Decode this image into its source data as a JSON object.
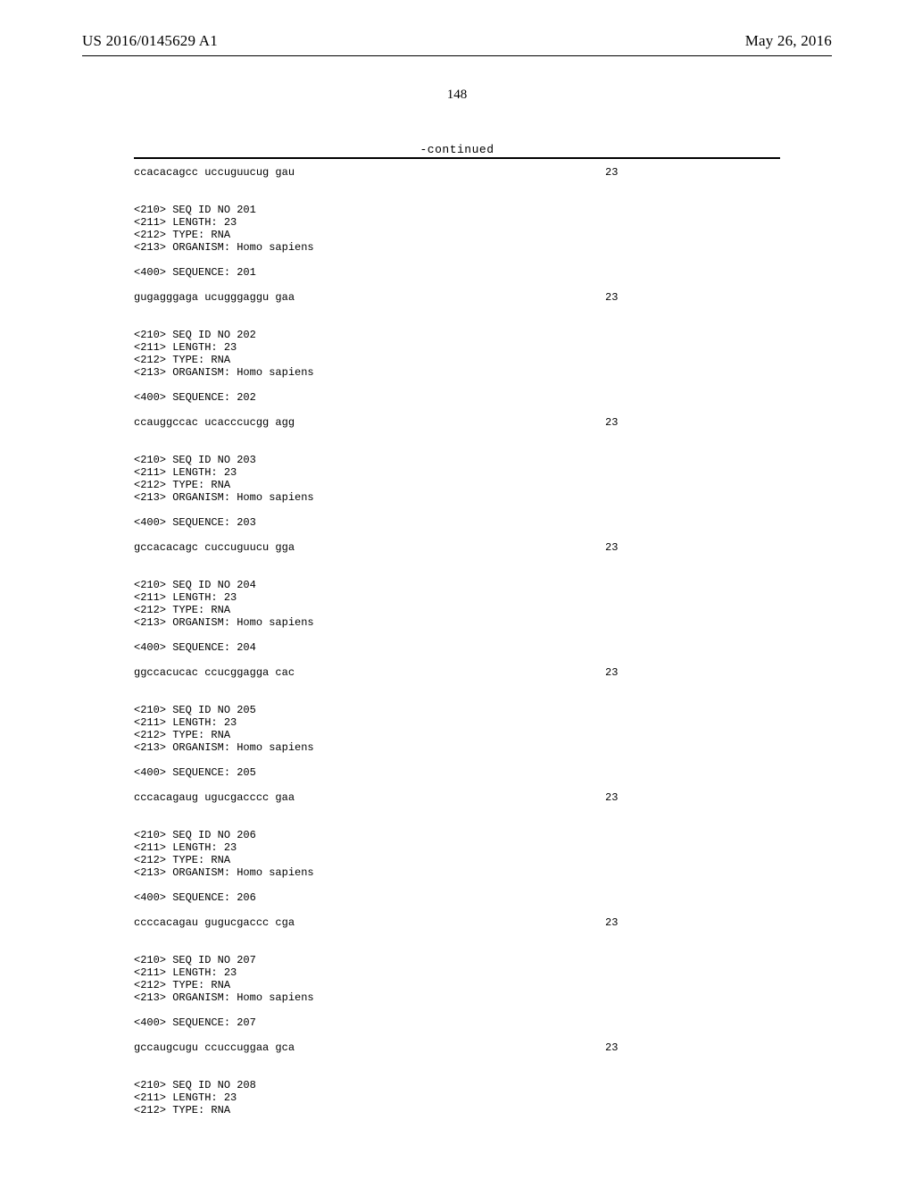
{
  "header": {
    "left": "US 2016/0145629 A1",
    "right": "May 26, 2016"
  },
  "page_number": "148",
  "continued_label": "-continued",
  "sequence_right_number": "23",
  "blocks": [
    {
      "type": "seqline",
      "text": "ccacacagcc uccuguucug gau",
      "num": "23"
    },
    {
      "type": "gap2"
    },
    {
      "type": "meta",
      "text": "<210> SEQ ID NO 201"
    },
    {
      "type": "meta",
      "text": "<211> LENGTH: 23"
    },
    {
      "type": "meta",
      "text": "<212> TYPE: RNA"
    },
    {
      "type": "meta",
      "text": "<213> ORGANISM: Homo sapiens"
    },
    {
      "type": "gap1"
    },
    {
      "type": "meta",
      "text": "<400> SEQUENCE: 201"
    },
    {
      "type": "gap1"
    },
    {
      "type": "seqline",
      "text": "gugagggaga ucugggaggu gaa",
      "num": "23"
    },
    {
      "type": "gap2"
    },
    {
      "type": "meta",
      "text": "<210> SEQ ID NO 202"
    },
    {
      "type": "meta",
      "text": "<211> LENGTH: 23"
    },
    {
      "type": "meta",
      "text": "<212> TYPE: RNA"
    },
    {
      "type": "meta",
      "text": "<213> ORGANISM: Homo sapiens"
    },
    {
      "type": "gap1"
    },
    {
      "type": "meta",
      "text": "<400> SEQUENCE: 202"
    },
    {
      "type": "gap1"
    },
    {
      "type": "seqline",
      "text": "ccauggccac ucacccucgg agg",
      "num": "23"
    },
    {
      "type": "gap2"
    },
    {
      "type": "meta",
      "text": "<210> SEQ ID NO 203"
    },
    {
      "type": "meta",
      "text": "<211> LENGTH: 23"
    },
    {
      "type": "meta",
      "text": "<212> TYPE: RNA"
    },
    {
      "type": "meta",
      "text": "<213> ORGANISM: Homo sapiens"
    },
    {
      "type": "gap1"
    },
    {
      "type": "meta",
      "text": "<400> SEQUENCE: 203"
    },
    {
      "type": "gap1"
    },
    {
      "type": "seqline",
      "text": "gccacacagc cuccuguucu gga",
      "num": "23"
    },
    {
      "type": "gap2"
    },
    {
      "type": "meta",
      "text": "<210> SEQ ID NO 204"
    },
    {
      "type": "meta",
      "text": "<211> LENGTH: 23"
    },
    {
      "type": "meta",
      "text": "<212> TYPE: RNA"
    },
    {
      "type": "meta",
      "text": "<213> ORGANISM: Homo sapiens"
    },
    {
      "type": "gap1"
    },
    {
      "type": "meta",
      "text": "<400> SEQUENCE: 204"
    },
    {
      "type": "gap1"
    },
    {
      "type": "seqline",
      "text": "ggccacucac ccucggagga cac",
      "num": "23"
    },
    {
      "type": "gap2"
    },
    {
      "type": "meta",
      "text": "<210> SEQ ID NO 205"
    },
    {
      "type": "meta",
      "text": "<211> LENGTH: 23"
    },
    {
      "type": "meta",
      "text": "<212> TYPE: RNA"
    },
    {
      "type": "meta",
      "text": "<213> ORGANISM: Homo sapiens"
    },
    {
      "type": "gap1"
    },
    {
      "type": "meta",
      "text": "<400> SEQUENCE: 205"
    },
    {
      "type": "gap1"
    },
    {
      "type": "seqline",
      "text": "cccacagaug ugucgacccc gaa",
      "num": "23"
    },
    {
      "type": "gap2"
    },
    {
      "type": "meta",
      "text": "<210> SEQ ID NO 206"
    },
    {
      "type": "meta",
      "text": "<211> LENGTH: 23"
    },
    {
      "type": "meta",
      "text": "<212> TYPE: RNA"
    },
    {
      "type": "meta",
      "text": "<213> ORGANISM: Homo sapiens"
    },
    {
      "type": "gap1"
    },
    {
      "type": "meta",
      "text": "<400> SEQUENCE: 206"
    },
    {
      "type": "gap1"
    },
    {
      "type": "seqline",
      "text": "ccccacagau gugucgaccc cga",
      "num": "23"
    },
    {
      "type": "gap2"
    },
    {
      "type": "meta",
      "text": "<210> SEQ ID NO 207"
    },
    {
      "type": "meta",
      "text": "<211> LENGTH: 23"
    },
    {
      "type": "meta",
      "text": "<212> TYPE: RNA"
    },
    {
      "type": "meta",
      "text": "<213> ORGANISM: Homo sapiens"
    },
    {
      "type": "gap1"
    },
    {
      "type": "meta",
      "text": "<400> SEQUENCE: 207"
    },
    {
      "type": "gap1"
    },
    {
      "type": "seqline",
      "text": "gccaugcugu ccuccuggaa gca",
      "num": "23"
    },
    {
      "type": "gap2"
    },
    {
      "type": "meta",
      "text": "<210> SEQ ID NO 208"
    },
    {
      "type": "meta",
      "text": "<211> LENGTH: 23"
    },
    {
      "type": "meta",
      "text": "<212> TYPE: RNA"
    }
  ]
}
